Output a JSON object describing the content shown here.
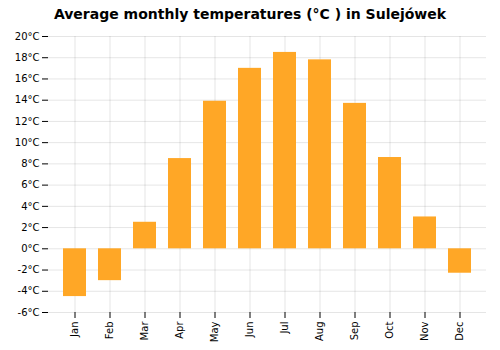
{
  "chart_data": {
    "type": "bar",
    "title": "Average monthly temperatures (°C ) in Sulejówek",
    "categories": [
      "Jan",
      "Feb",
      "Mar",
      "Apr",
      "May",
      "Jun",
      "Jul",
      "Aug",
      "Sep",
      "Oct",
      "Nov",
      "Dec"
    ],
    "values": [
      -4.5,
      -3.0,
      2.5,
      8.5,
      13.9,
      17.0,
      18.5,
      17.8,
      13.7,
      8.6,
      3.0,
      -2.3
    ],
    "color": "#FFA726",
    "ylim": [
      -6,
      20
    ],
    "yticks": [
      {
        "value": -6,
        "label": "-6°C"
      },
      {
        "value": -4,
        "label": "-4°C"
      },
      {
        "value": -2,
        "label": "-2°C"
      },
      {
        "value": 0,
        "label": "0°C"
      },
      {
        "value": 2,
        "label": "2°C"
      },
      {
        "value": 4,
        "label": "4°C"
      },
      {
        "value": 6,
        "label": "6°C"
      },
      {
        "value": 8,
        "label": "8°C"
      },
      {
        "value": 10,
        "label": "10°C"
      },
      {
        "value": 12,
        "label": "12°C"
      },
      {
        "value": 14,
        "label": "14°C"
      },
      {
        "value": 16,
        "label": "16°C"
      },
      {
        "value": 18,
        "label": "18°C"
      },
      {
        "value": 20,
        "label": "20°C"
      }
    ],
    "grid": true
  }
}
